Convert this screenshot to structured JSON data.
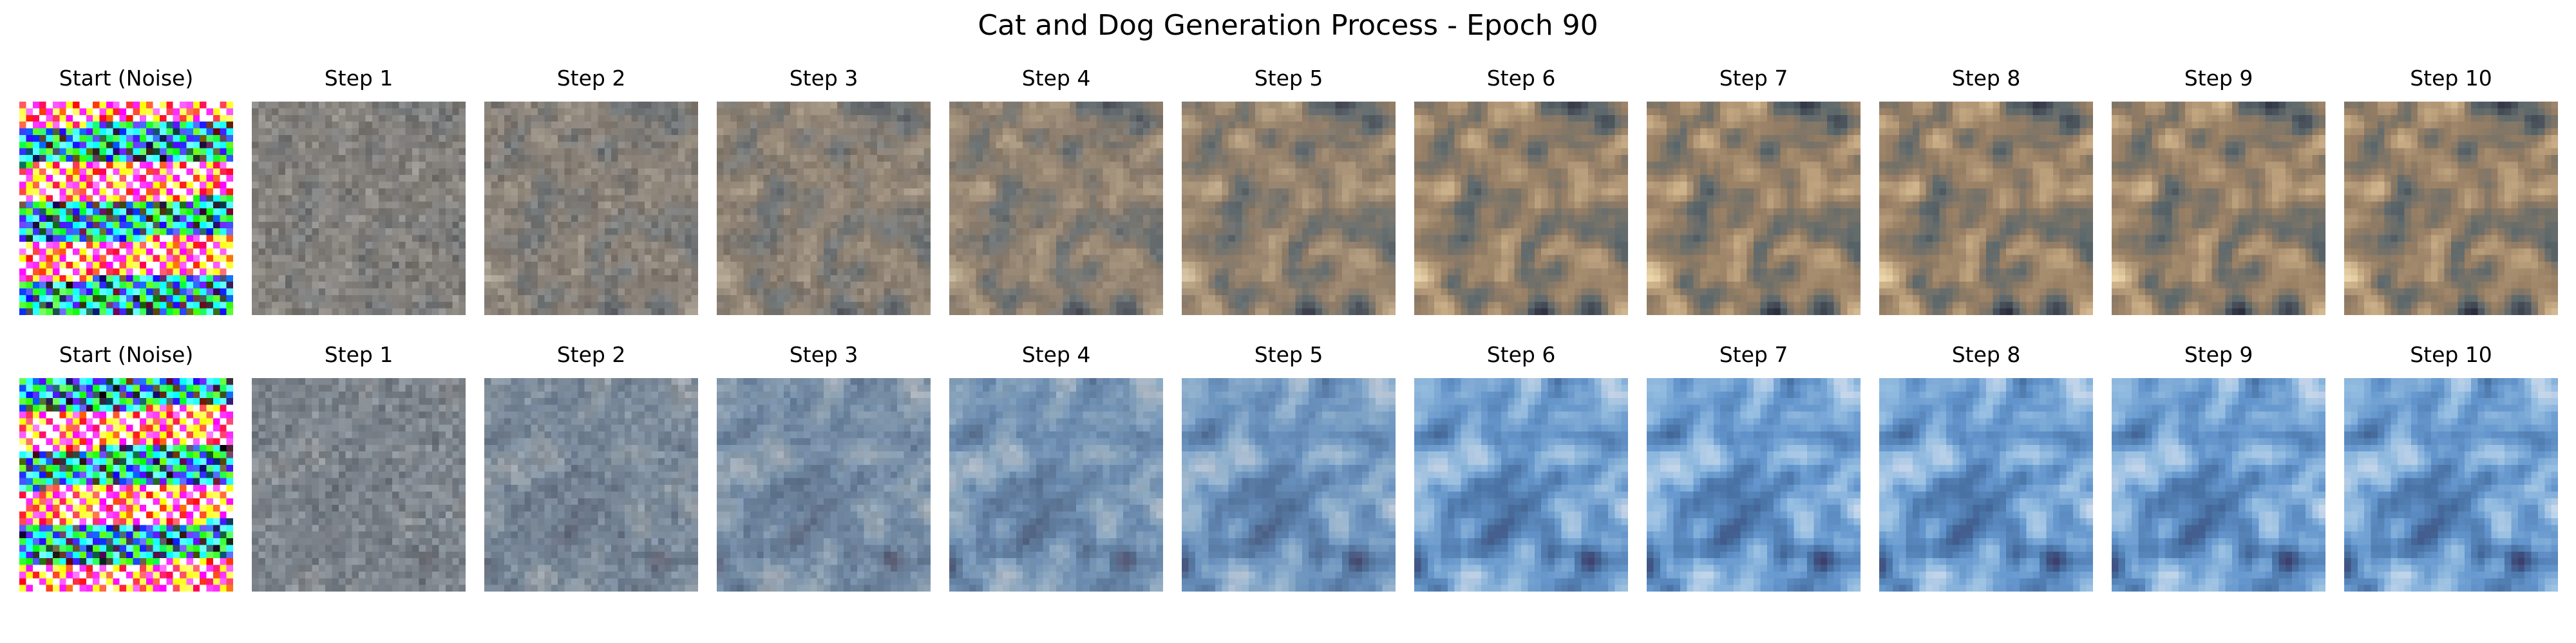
{
  "figure": {
    "title": "Cat and Dog Generation Process - Epoch 90"
  },
  "rows": [
    {
      "palette": "warm",
      "panels": [
        {
          "label": "Start (Noise)",
          "kind": "noise",
          "progress": 0.0
        },
        {
          "label": "Step 1",
          "kind": "step",
          "progress": 0.1
        },
        {
          "label": "Step 2",
          "kind": "step",
          "progress": 0.2
        },
        {
          "label": "Step 3",
          "kind": "step",
          "progress": 0.3
        },
        {
          "label": "Step 4",
          "kind": "step",
          "progress": 0.4
        },
        {
          "label": "Step 5",
          "kind": "step",
          "progress": 0.5
        },
        {
          "label": "Step 6",
          "kind": "step",
          "progress": 0.6
        },
        {
          "label": "Step 7",
          "kind": "step",
          "progress": 0.7
        },
        {
          "label": "Step 8",
          "kind": "step",
          "progress": 0.8
        },
        {
          "label": "Step 9",
          "kind": "step",
          "progress": 0.9
        },
        {
          "label": "Step 10",
          "kind": "step",
          "progress": 1.0
        }
      ]
    },
    {
      "palette": "cool",
      "panels": [
        {
          "label": "Start (Noise)",
          "kind": "noise",
          "progress": 0.0
        },
        {
          "label": "Step 1",
          "kind": "step",
          "progress": 0.1
        },
        {
          "label": "Step 2",
          "kind": "step",
          "progress": 0.2
        },
        {
          "label": "Step 3",
          "kind": "step",
          "progress": 0.3
        },
        {
          "label": "Step 4",
          "kind": "step",
          "progress": 0.4
        },
        {
          "label": "Step 5",
          "kind": "step",
          "progress": 0.5
        },
        {
          "label": "Step 6",
          "kind": "step",
          "progress": 0.6
        },
        {
          "label": "Step 7",
          "kind": "step",
          "progress": 0.7
        },
        {
          "label": "Step 8",
          "kind": "step",
          "progress": 0.8
        },
        {
          "label": "Step 9",
          "kind": "step",
          "progress": 0.9
        },
        {
          "label": "Step 10",
          "kind": "step",
          "progress": 1.0
        }
      ]
    }
  ]
}
